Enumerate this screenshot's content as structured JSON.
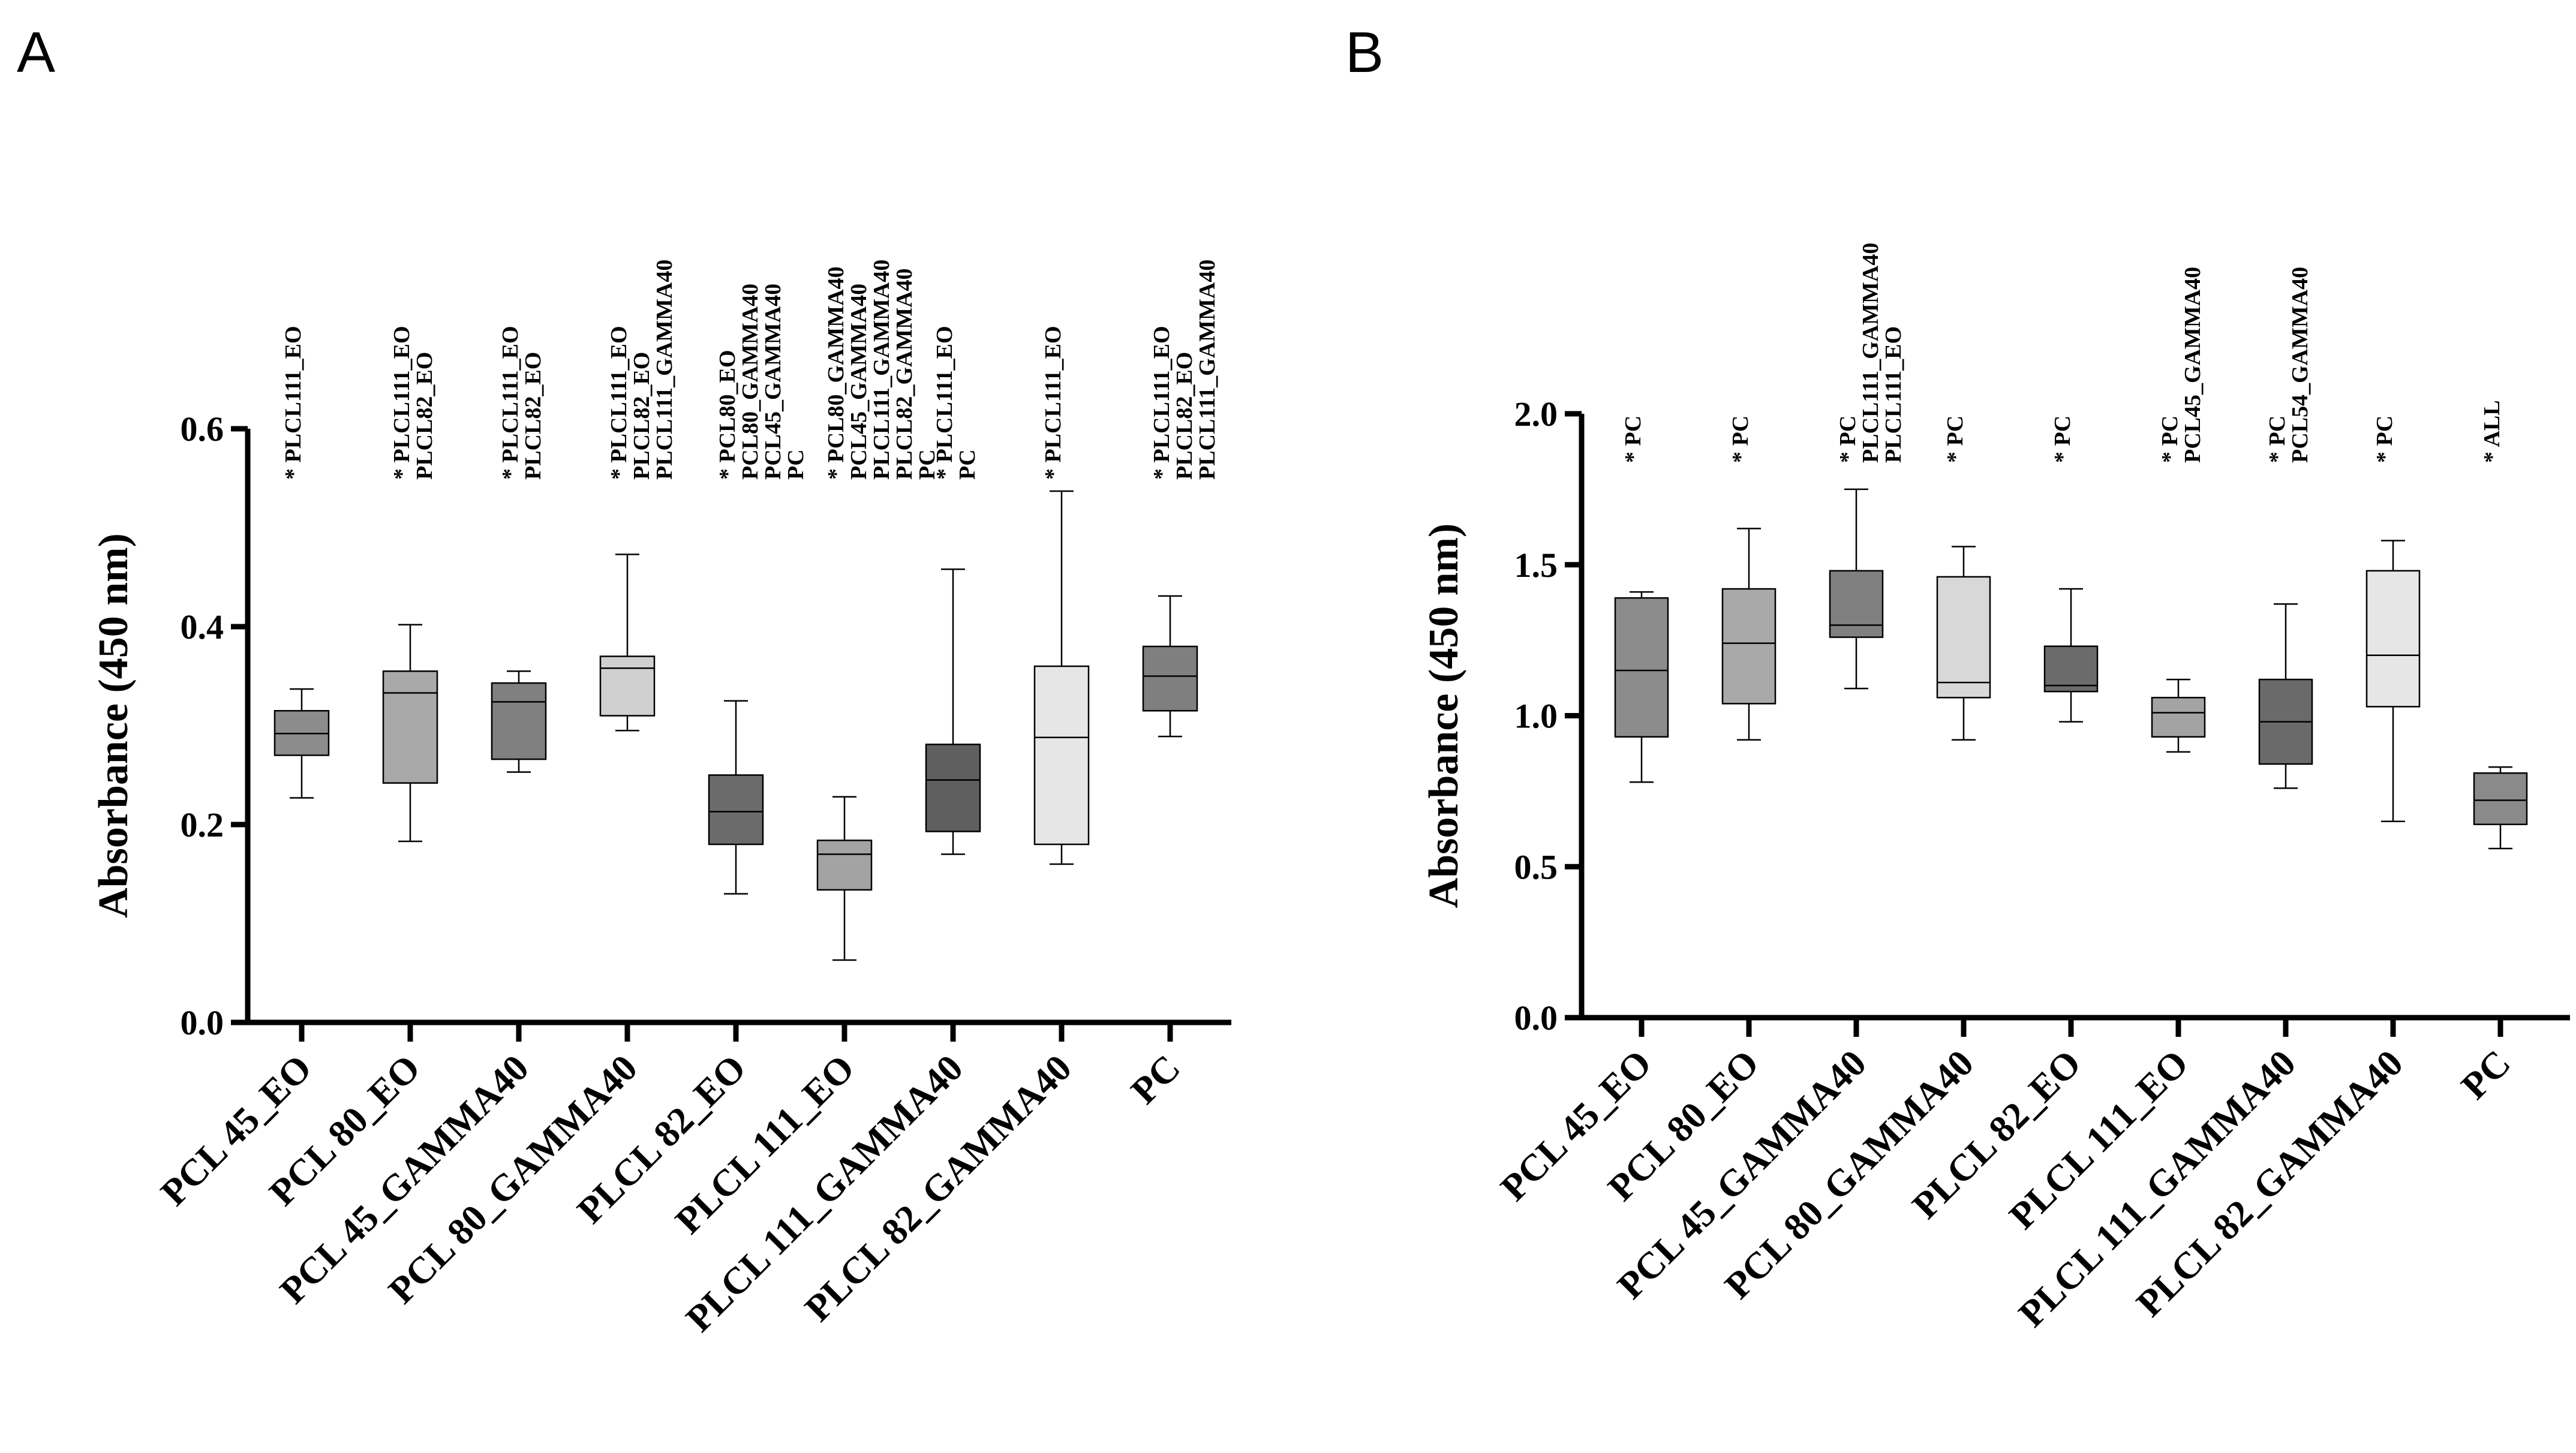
{
  "panels": [
    {
      "letter": "A",
      "chart_data": {
        "type": "box",
        "ylabel": "Absorbance (450 nm)",
        "xlabel": "",
        "ylim": [
          0,
          0.6
        ],
        "yticks": [
          0.0,
          0.2,
          0.4,
          0.6
        ],
        "ytick_labels": [
          "0.0",
          "0.2",
          "0.4",
          "0.6"
        ],
        "grid": false,
        "legend": "none",
        "categories": [
          "PCL 45_EO",
          "PCL 80_EO",
          "PCL 45_GAMMA40",
          "PCL 80_GAMMA40",
          "PLCL 82_EO",
          "PLCL 111_EO",
          "PLCL 111_GAMMA40",
          "PLCL 82_GAMMA40",
          "PC"
        ],
        "boxes": [
          {
            "min": 0.227,
            "q1": 0.27,
            "median": 0.292,
            "q3": 0.315,
            "max": 0.337,
            "color": "#8c8c8c"
          },
          {
            "min": 0.183,
            "q1": 0.242,
            "median": 0.333,
            "q3": 0.355,
            "max": 0.402,
            "color": "#a9a9a9"
          },
          {
            "min": 0.253,
            "q1": 0.266,
            "median": 0.324,
            "q3": 0.343,
            "max": 0.355,
            "color": "#808080"
          },
          {
            "min": 0.295,
            "q1": 0.31,
            "median": 0.358,
            "q3": 0.37,
            "max": 0.473,
            "color": "#d0d0d0"
          },
          {
            "min": 0.13,
            "q1": 0.18,
            "median": 0.213,
            "q3": 0.25,
            "max": 0.325,
            "color": "#6b6b6b"
          },
          {
            "min": 0.063,
            "q1": 0.134,
            "median": 0.17,
            "q3": 0.184,
            "max": 0.228,
            "color": "#a3a3a3"
          },
          {
            "min": 0.17,
            "q1": 0.193,
            "median": 0.245,
            "q3": 0.281,
            "max": 0.458,
            "color": "#5f5f5f"
          },
          {
            "min": 0.16,
            "q1": 0.18,
            "median": 0.288,
            "q3": 0.36,
            "max": 0.537,
            "color": "#e6e6e6"
          },
          {
            "min": 0.289,
            "q1": 0.315,
            "median": 0.35,
            "q3": 0.38,
            "max": 0.431,
            "color": "#7f7f7f"
          }
        ],
        "annotations": [
          [
            "* PLCL111_EO"
          ],
          [
            "* PLCL111_EO",
            "PLCL82_EO"
          ],
          [
            "* PLCL111_EO",
            "PLCL82_EO"
          ],
          [
            "* PLCL111_EO",
            "PLCL82_EO",
            "PLCL111_GAMMA40"
          ],
          [
            "* PCL80_EO",
            "PCL80_GAMMA40",
            "PCL45_GAMMA40",
            "PC"
          ],
          [
            "* PCL80_GAMMA40",
            "PCL45_GAMMA40",
            "PLCL111_GAMMA40",
            "PLCL82_GAMMA40",
            "PC"
          ],
          [
            "* PLCL111_EO",
            "PC"
          ],
          [
            "* PLCL111_EO"
          ],
          [
            "* PLCL111_EO",
            "PLCL82_EO",
            "PLCL111_GAMMA40"
          ]
        ]
      }
    },
    {
      "letter": "B",
      "chart_data": {
        "type": "box",
        "ylabel": "Absorbance (450 nm)",
        "xlabel": "",
        "ylim": [
          0,
          2.0
        ],
        "yticks": [
          0.0,
          0.5,
          1.0,
          1.5,
          2.0
        ],
        "ytick_labels": [
          "0.0",
          "0.5",
          "1.0",
          "1.5",
          "2.0"
        ],
        "grid": false,
        "legend": "none",
        "categories": [
          "PCL 45_EO",
          "PCL 80_EO",
          "PCL 45_GAMMA40",
          "PCL 80_GAMMA40",
          "PLCL 82_EO",
          "PLCL 111_EO",
          "PLCL 111_GAMMA40",
          "PLCL 82_GAMMA40",
          "PC"
        ],
        "boxes": [
          {
            "min": 0.78,
            "q1": 0.93,
            "median": 1.15,
            "q3": 1.39,
            "max": 1.41,
            "color": "#8c8c8c"
          },
          {
            "min": 0.92,
            "q1": 1.04,
            "median": 1.24,
            "q3": 1.42,
            "max": 1.62,
            "color": "#a9a9a9"
          },
          {
            "min": 1.09,
            "q1": 1.26,
            "median": 1.3,
            "q3": 1.48,
            "max": 1.75,
            "color": "#808080"
          },
          {
            "min": 0.92,
            "q1": 1.06,
            "median": 1.11,
            "q3": 1.46,
            "max": 1.56,
            "color": "#d8d8d8"
          },
          {
            "min": 0.98,
            "q1": 1.08,
            "median": 1.1,
            "q3": 1.23,
            "max": 1.42,
            "color": "#6b6b6b"
          },
          {
            "min": 0.88,
            "q1": 0.93,
            "median": 1.01,
            "q3": 1.06,
            "max": 1.12,
            "color": "#a3a3a3"
          },
          {
            "min": 0.76,
            "q1": 0.84,
            "median": 0.98,
            "q3": 1.12,
            "max": 1.37,
            "color": "#6a6a6a"
          },
          {
            "min": 0.65,
            "q1": 1.03,
            "median": 1.2,
            "q3": 1.48,
            "max": 1.58,
            "color": "#e6e6e6"
          },
          {
            "min": 0.56,
            "q1": 0.64,
            "median": 0.72,
            "q3": 0.81,
            "max": 0.83,
            "color": "#8a8a8a"
          }
        ],
        "annotations": [
          [
            "* PC"
          ],
          [
            "* PC"
          ],
          [
            "* PC",
            "PLCL111_GAMMA40",
            "PLCL111_EO"
          ],
          [
            "* PC"
          ],
          [
            "* PC"
          ],
          [
            "* PC",
            "PCL45_GAMMA40"
          ],
          [
            "* PC",
            "PCL54_GAMMA40"
          ],
          [
            "* PC"
          ],
          [
            "* ALL"
          ]
        ]
      }
    }
  ]
}
